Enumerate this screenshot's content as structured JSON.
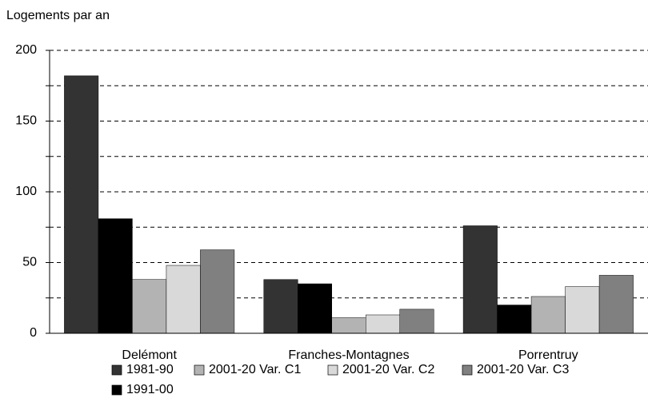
{
  "chart_data": {
    "type": "bar",
    "ylabel": "Logements par an",
    "categories": [
      "Delémont",
      "Franches-Montagnes",
      "Porrentruy"
    ],
    "series": [
      {
        "name": "1981-90",
        "color": "#333333",
        "values": [
          182,
          38,
          76
        ]
      },
      {
        "name": "1991-00",
        "color": "#000000",
        "values": [
          81,
          35,
          20
        ]
      },
      {
        "name": "2001-20 Var. C1",
        "color": "#b3b3b3",
        "values": [
          38,
          11,
          26
        ]
      },
      {
        "name": "2001-20 Var. C2",
        "color": "#d9d9d9",
        "values": [
          48,
          13,
          33
        ]
      },
      {
        "name": "2001-20 Var. C3",
        "color": "#808080",
        "values": [
          59,
          17,
          41
        ]
      }
    ],
    "ylim": [
      0,
      200
    ],
    "yticks": [
      0,
      50,
      100,
      150,
      200
    ],
    "minor_gridlines": [
      25,
      75,
      125,
      175
    ],
    "grid": true,
    "grid_style": "dashed"
  }
}
